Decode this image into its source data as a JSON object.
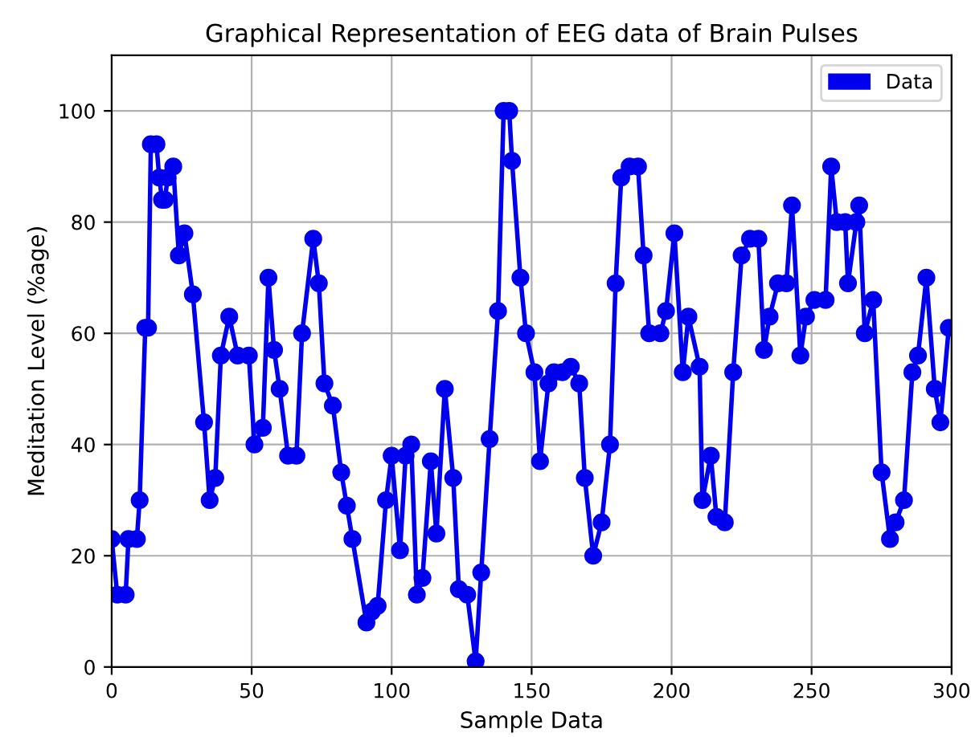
{
  "chart_data": {
    "type": "line",
    "title": "Graphical Representation of EEG data of Brain Pulses",
    "xlabel": "Sample Data",
    "ylabel": "Meditation Level (%age)",
    "xlim": [
      0,
      300
    ],
    "ylim": [
      0,
      110
    ],
    "xticks": [
      0,
      50,
      100,
      150,
      200,
      250,
      300
    ],
    "yticks": [
      0,
      20,
      40,
      60,
      80,
      100
    ],
    "grid": true,
    "legend": "top right",
    "marker": "circle",
    "line_style": "solid",
    "series": [
      {
        "name": "Data",
        "color": "#0000ee",
        "x": [
          0,
          2,
          5,
          6,
          9,
          10,
          12,
          13,
          14,
          16,
          17,
          18,
          19,
          20,
          22,
          24,
          26,
          29,
          33,
          35,
          37,
          39,
          42,
          45,
          49,
          51,
          54,
          56,
          58,
          60,
          63,
          66,
          68,
          72,
          74,
          76,
          79,
          82,
          84,
          86,
          91,
          93,
          95,
          98,
          100,
          103,
          105,
          107,
          109,
          111,
          114,
          116,
          119,
          122,
          124,
          127,
          130,
          132,
          135,
          138,
          140,
          142,
          143,
          146,
          148,
          151,
          153,
          156,
          158,
          161,
          164,
          167,
          169,
          172,
          175,
          178,
          180,
          182,
          185,
          188,
          190,
          192,
          196,
          198,
          201,
          204,
          206,
          210,
          211,
          214,
          216,
          219,
          222,
          225,
          228,
          231,
          233,
          235,
          238,
          241,
          243,
          246,
          248,
          251,
          255,
          257,
          259,
          262,
          263,
          266,
          267,
          269,
          272,
          275,
          278,
          280,
          283,
          286,
          288,
          291,
          294,
          296,
          299
        ],
        "values": [
          23,
          13,
          13,
          23,
          23,
          30,
          61,
          61,
          94,
          94,
          88,
          84,
          84,
          88,
          90,
          74,
          78,
          67,
          44,
          30,
          34,
          56,
          63,
          56,
          56,
          40,
          43,
          70,
          57,
          50,
          38,
          38,
          60,
          77,
          69,
          51,
          47,
          35,
          29,
          23,
          8,
          10,
          11,
          30,
          38,
          21,
          38,
          40,
          13,
          16,
          37,
          24,
          50,
          34,
          14,
          13,
          1,
          17,
          41,
          64,
          100,
          100,
          91,
          70,
          60,
          53,
          37,
          51,
          53,
          53,
          54,
          51,
          34,
          20,
          26,
          40,
          69,
          88,
          90,
          90,
          74,
          60,
          60,
          64,
          78,
          53,
          63,
          54,
          30,
          38,
          27,
          26,
          53,
          74,
          77,
          77,
          57,
          63,
          69,
          69,
          83,
          56,
          63,
          66,
          66,
          90,
          80,
          80,
          69,
          80,
          83,
          60,
          66,
          35,
          23,
          26,
          30,
          53,
          56,
          70,
          50,
          44,
          61
        ]
      }
    ]
  }
}
